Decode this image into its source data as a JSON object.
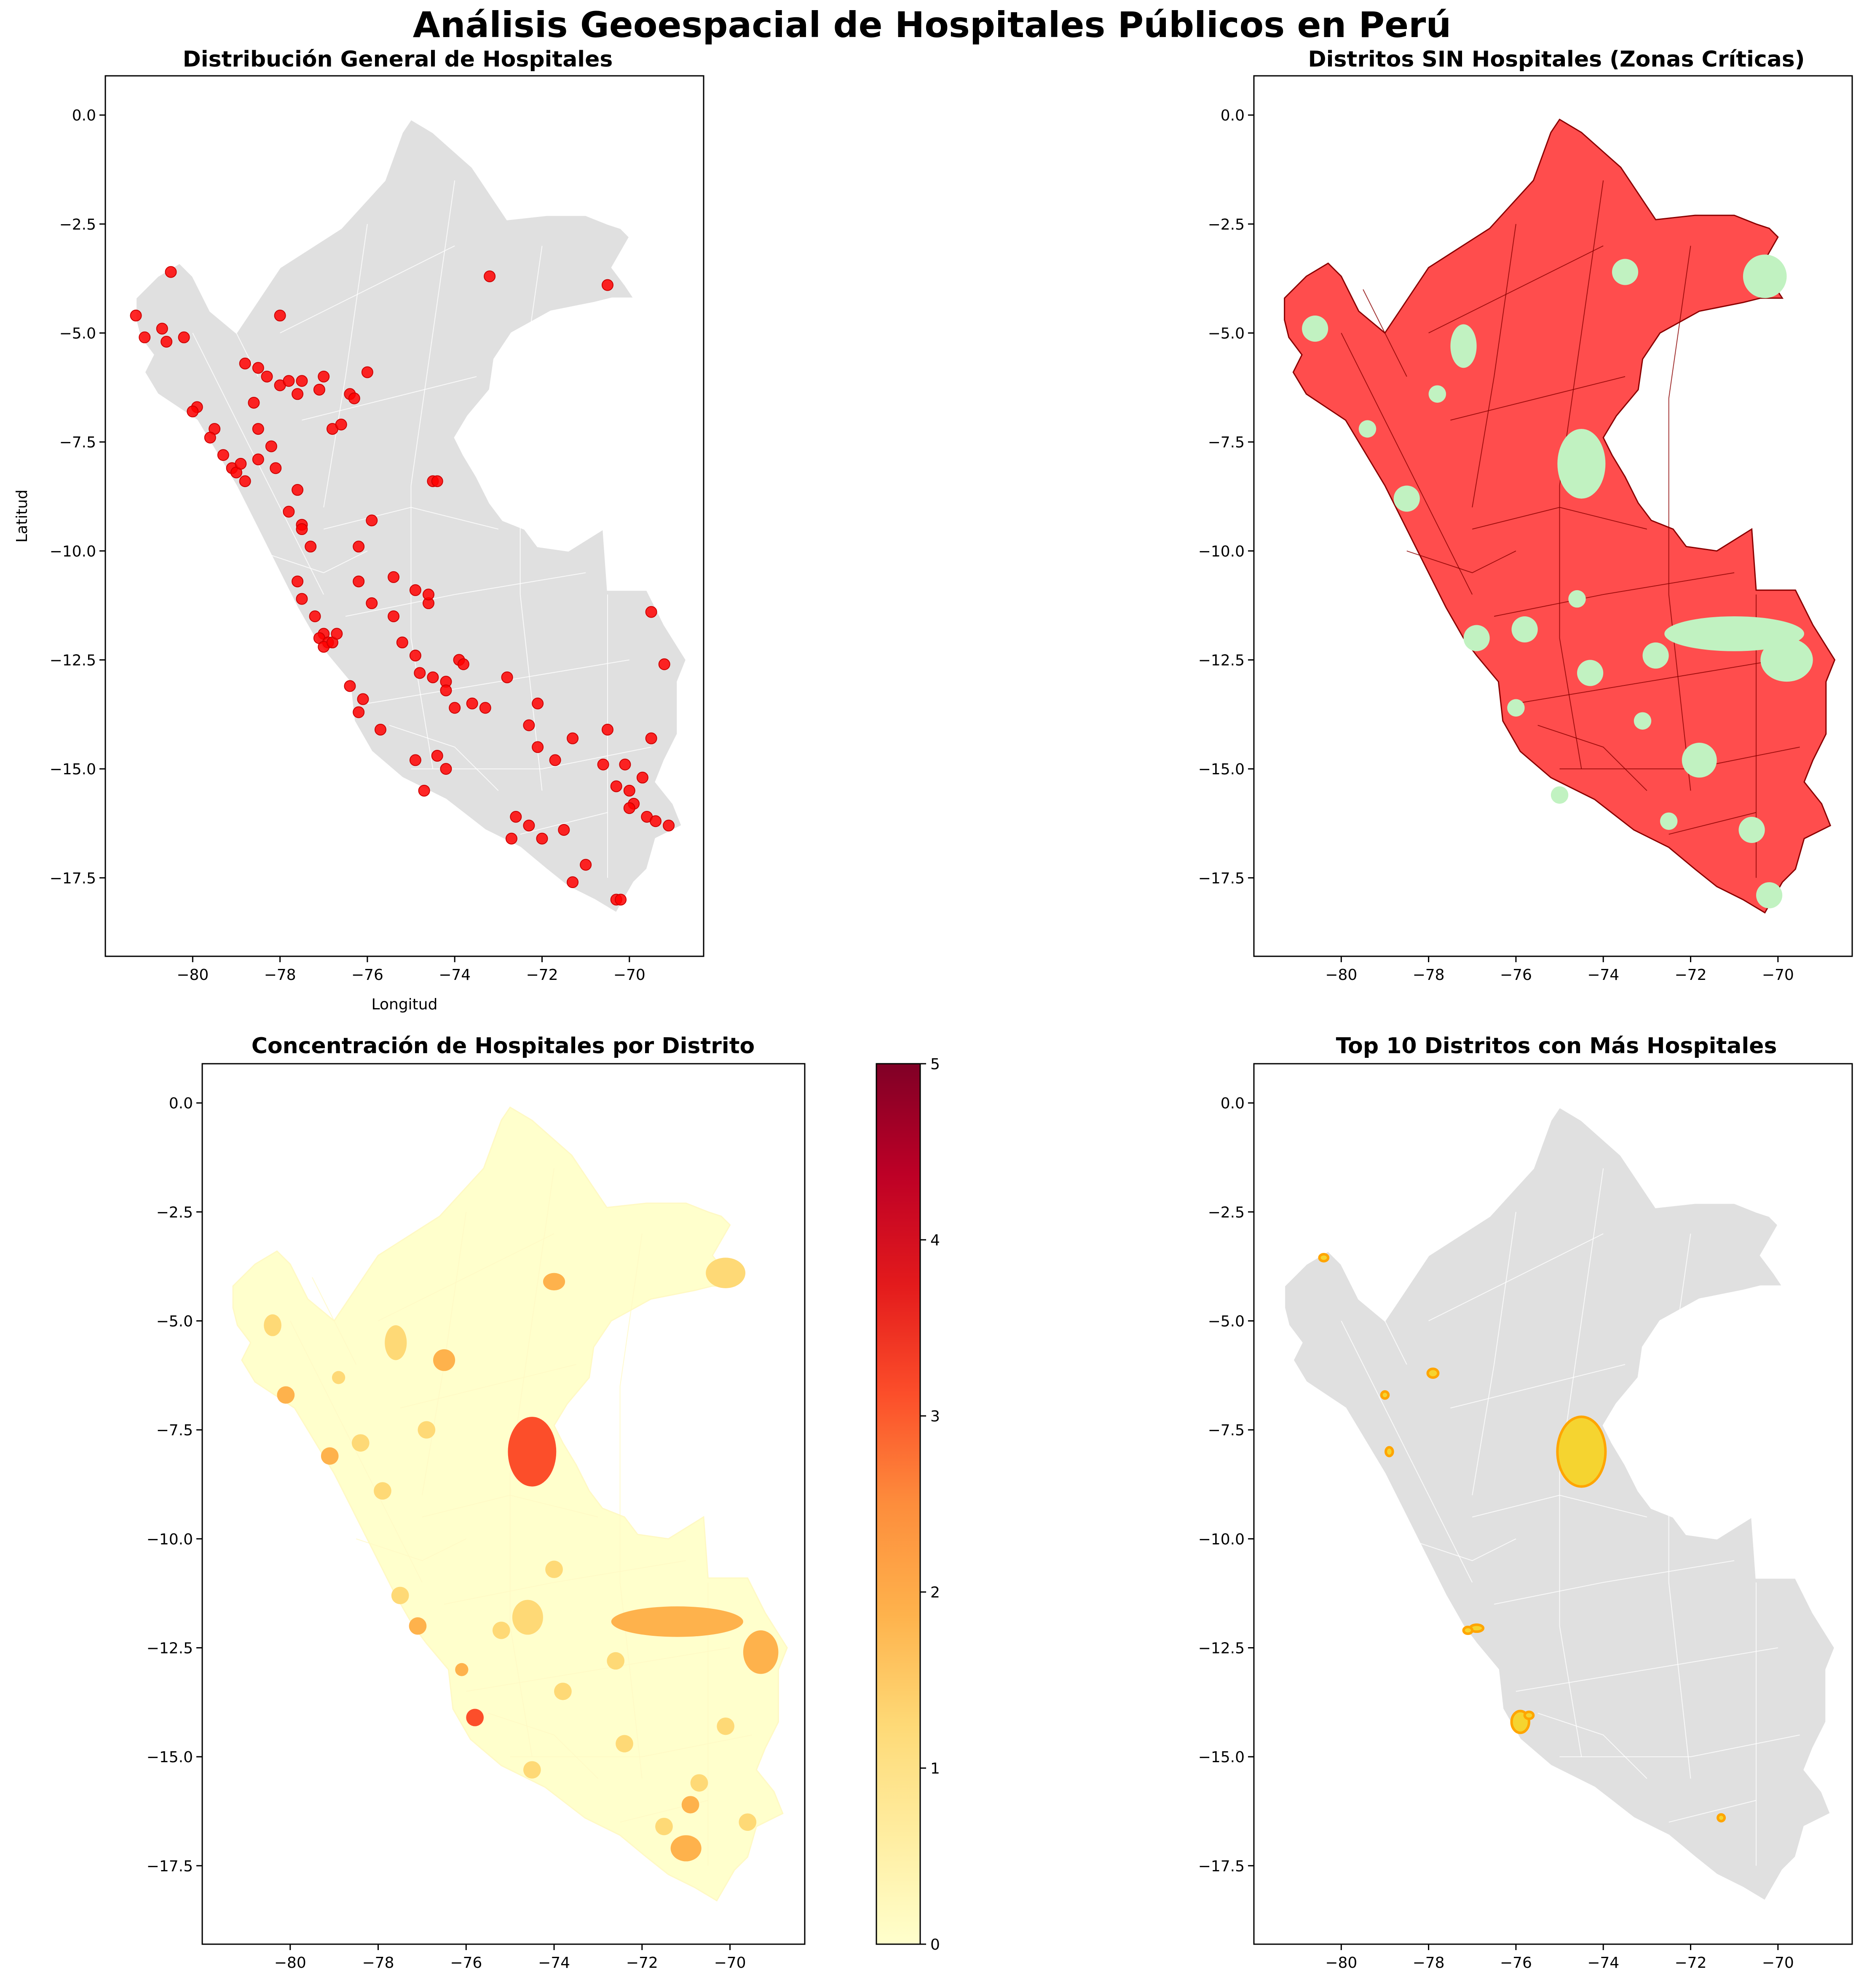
{
  "figure": {
    "suptitle": "Análisis Geoespacial de Hospitales Públicos en Perú"
  },
  "chart_data": [
    {
      "type": "scatter",
      "panel": "top-left",
      "title": "Distribución General de Hospitales",
      "xlabel": "Longitud",
      "ylabel": "Latitud",
      "xlim": [
        -82.0,
        -68.3
      ],
      "ylim": [
        -19.3,
        0.9
      ],
      "xticks": [
        "−80",
        "−78",
        "−76",
        "−74",
        "−72",
        "−70"
      ],
      "yticks": [
        "0.0",
        "−2.5",
        "−5.0",
        "−7.5",
        "−10.0",
        "−12.5",
        "−15.0",
        "−17.5"
      ],
      "base_color": "#e0e0e0",
      "point_color": "#ff0000",
      "points": [
        [
          -80.5,
          -3.6
        ],
        [
          -81.3,
          -4.6
        ],
        [
          -81.1,
          -5.1
        ],
        [
          -80.7,
          -4.9
        ],
        [
          -80.6,
          -5.2
        ],
        [
          -80.2,
          -5.1
        ],
        [
          -79.9,
          -6.7
        ],
        [
          -80.0,
          -6.8
        ],
        [
          -79.5,
          -7.2
        ],
        [
          -79.6,
          -7.4
        ],
        [
          -79.3,
          -7.8
        ],
        [
          -79.1,
          -8.1
        ],
        [
          -79.0,
          -8.2
        ],
        [
          -78.9,
          -8.0
        ],
        [
          -78.8,
          -8.4
        ],
        [
          -78.5,
          -7.9
        ],
        [
          -78.5,
          -7.2
        ],
        [
          -78.6,
          -6.6
        ],
        [
          -78.8,
          -5.7
        ],
        [
          -78.5,
          -5.8
        ],
        [
          -78.3,
          -6.0
        ],
        [
          -78.0,
          -6.2
        ],
        [
          -77.8,
          -6.1
        ],
        [
          -77.5,
          -6.1
        ],
        [
          -77.6,
          -6.4
        ],
        [
          -77.1,
          -6.3
        ],
        [
          -77.0,
          -6.0
        ],
        [
          -76.4,
          -6.4
        ],
        [
          -76.3,
          -6.5
        ],
        [
          -76.0,
          -5.9
        ],
        [
          -76.8,
          -7.2
        ],
        [
          -76.6,
          -7.1
        ],
        [
          -78.2,
          -7.6
        ],
        [
          -78.1,
          -8.1
        ],
        [
          -77.6,
          -8.6
        ],
        [
          -77.8,
          -9.1
        ],
        [
          -77.5,
          -9.4
        ],
        [
          -77.5,
          -9.5
        ],
        [
          -77.3,
          -9.9
        ],
        [
          -77.6,
          -10.7
        ],
        [
          -77.5,
          -11.1
        ],
        [
          -77.2,
          -11.5
        ],
        [
          -77.0,
          -11.9
        ],
        [
          -77.1,
          -12.0
        ],
        [
          -76.9,
          -12.1
        ],
        [
          -77.0,
          -12.2
        ],
        [
          -76.8,
          -12.1
        ],
        [
          -76.7,
          -11.9
        ],
        [
          -76.4,
          -13.1
        ],
        [
          -76.1,
          -13.4
        ],
        [
          -76.2,
          -13.7
        ],
        [
          -75.7,
          -14.1
        ],
        [
          -76.2,
          -9.9
        ],
        [
          -75.9,
          -9.3
        ],
        [
          -76.2,
          -10.7
        ],
        [
          -75.9,
          -11.2
        ],
        [
          -75.4,
          -11.5
        ],
        [
          -75.2,
          -12.1
        ],
        [
          -75.4,
          -10.6
        ],
        [
          -74.9,
          -10.9
        ],
        [
          -74.6,
          -11.2
        ],
        [
          -74.6,
          -11.0
        ],
        [
          -74.9,
          -12.4
        ],
        [
          -74.8,
          -12.8
        ],
        [
          -74.5,
          -12.9
        ],
        [
          -74.2,
          -13.0
        ],
        [
          -74.2,
          -13.2
        ],
        [
          -73.9,
          -12.5
        ],
        [
          -73.8,
          -12.6
        ],
        [
          -74.0,
          -13.6
        ],
        [
          -73.6,
          -13.5
        ],
        [
          -73.3,
          -13.6
        ],
        [
          -74.5,
          -8.4
        ],
        [
          -74.4,
          -8.4
        ],
        [
          -73.2,
          -3.7
        ],
        [
          -70.5,
          -3.9
        ],
        [
          -69.5,
          -11.4
        ],
        [
          -69.2,
          -12.6
        ],
        [
          -72.8,
          -12.9
        ],
        [
          -72.1,
          -13.5
        ],
        [
          -72.3,
          -14.0
        ],
        [
          -72.1,
          -14.5
        ],
        [
          -71.7,
          -14.8
        ],
        [
          -71.3,
          -14.3
        ],
        [
          -70.5,
          -14.1
        ],
        [
          -70.1,
          -14.9
        ],
        [
          -70.6,
          -14.9
        ],
        [
          -70.3,
          -15.4
        ],
        [
          -70.0,
          -15.5
        ],
        [
          -69.9,
          -15.8
        ],
        [
          -69.7,
          -15.2
        ],
        [
          -69.5,
          -14.3
        ],
        [
          -69.6,
          -16.1
        ],
        [
          -69.4,
          -16.2
        ],
        [
          -69.1,
          -16.3
        ],
        [
          -70.0,
          -15.9
        ],
        [
          -71.5,
          -16.4
        ],
        [
          -72.0,
          -16.6
        ],
        [
          -72.3,
          -16.3
        ],
        [
          -72.6,
          -16.1
        ],
        [
          -72.7,
          -16.6
        ],
        [
          -71.3,
          -17.6
        ],
        [
          -71.0,
          -17.2
        ],
        [
          -70.3,
          -18.0
        ],
        [
          -70.2,
          -18.0
        ],
        [
          -74.9,
          -14.8
        ],
        [
          -74.7,
          -15.5
        ],
        [
          -74.4,
          -14.7
        ],
        [
          -74.2,
          -15.0
        ],
        [
          -78.0,
          -4.6
        ]
      ]
    },
    {
      "type": "map",
      "panel": "top-right",
      "title": "Distritos SIN Hospitales (Zonas Críticas)",
      "xlim": [
        -82.0,
        -68.3
      ],
      "ylim": [
        -19.3,
        0.9
      ],
      "xticks": [
        "−80",
        "−78",
        "−76",
        "−74",
        "−72",
        "−70"
      ],
      "yticks": [
        "0.0",
        "−2.5",
        "−5.0",
        "−7.5",
        "−10.0",
        "−12.5",
        "−15.0",
        "−17.5"
      ],
      "no_hospital_color": "#ff4d4d",
      "with_hospital_color": "#c1f2c1",
      "with_hospital_regions": [
        [
          -74.5,
          -8.0,
          0.55,
          0.8
        ],
        [
          -71.0,
          -11.9,
          1.6,
          0.4
        ],
        [
          -69.8,
          -12.5,
          0.6,
          0.5
        ],
        [
          -70.3,
          -3.7,
          0.5,
          0.5
        ],
        [
          -73.5,
          -3.6,
          0.3,
          0.3
        ],
        [
          -77.2,
          -5.3,
          0.3,
          0.5
        ],
        [
          -75.8,
          -11.8,
          0.3,
          0.3
        ],
        [
          -76.9,
          -12.0,
          0.3,
          0.3
        ],
        [
          -72.8,
          -12.4,
          0.3,
          0.3
        ],
        [
          -71.8,
          -14.8,
          0.4,
          0.4
        ],
        [
          -70.6,
          -16.4,
          0.3,
          0.3
        ],
        [
          -70.2,
          -17.9,
          0.3,
          0.3
        ],
        [
          -78.5,
          -8.8,
          0.3,
          0.3
        ],
        [
          -80.6,
          -4.9,
          0.3,
          0.3
        ],
        [
          -79.4,
          -7.2,
          0.2,
          0.2
        ],
        [
          -74.3,
          -12.8,
          0.3,
          0.3
        ],
        [
          -73.1,
          -13.9,
          0.2,
          0.2
        ],
        [
          -75.0,
          -15.6,
          0.2,
          0.2
        ],
        [
          -72.5,
          -16.2,
          0.2,
          0.2
        ],
        [
          -76.0,
          -13.6,
          0.2,
          0.2
        ],
        [
          -74.6,
          -11.1,
          0.2,
          0.2
        ],
        [
          -77.8,
          -6.4,
          0.2,
          0.2
        ]
      ]
    },
    {
      "type": "heatmap",
      "panel": "bottom-left",
      "title": "Concentración de Hospitales por Distrito",
      "xlim": [
        -82.0,
        -68.3
      ],
      "ylim": [
        -19.3,
        0.9
      ],
      "xticks": [
        "−80",
        "−78",
        "−76",
        "−74",
        "−72",
        "−70"
      ],
      "yticks": [
        "0.0",
        "−2.5",
        "−5.0",
        "−7.5",
        "−10.0",
        "−12.5",
        "−15.0",
        "−17.5"
      ],
      "colorbar": {
        "min": 0,
        "max": 5,
        "ticks": [
          "0",
          "1",
          "2",
          "3",
          "4",
          "5"
        ],
        "colormap": "YlOrRd"
      },
      "districts": [
        [
          -74.5,
          -8.0,
          0.55,
          0.8,
          3
        ],
        [
          -71.2,
          -11.9,
          1.5,
          0.35,
          2
        ],
        [
          -69.3,
          -12.6,
          0.4,
          0.5,
          2
        ],
        [
          -75.8,
          -14.1,
          0.2,
          0.2,
          3
        ],
        [
          -76.5,
          -5.9,
          0.25,
          0.25,
          2
        ],
        [
          -74.0,
          -4.1,
          0.25,
          0.2,
          2
        ],
        [
          -70.1,
          -3.9,
          0.45,
          0.35,
          1
        ],
        [
          -71.0,
          -17.1,
          0.35,
          0.3,
          2
        ],
        [
          -77.6,
          -5.5,
          0.25,
          0.4,
          1
        ],
        [
          -74.6,
          -11.8,
          0.35,
          0.4,
          1
        ],
        [
          -77.1,
          -12.0,
          0.2,
          0.2,
          2
        ],
        [
          -80.1,
          -6.7,
          0.2,
          0.2,
          2
        ],
        [
          -79.1,
          -8.1,
          0.2,
          0.2,
          2
        ],
        [
          -80.4,
          -5.1,
          0.2,
          0.25,
          1
        ],
        [
          -78.4,
          -7.8,
          0.2,
          0.2,
          1
        ],
        [
          -76.9,
          -7.5,
          0.2,
          0.2,
          1
        ],
        [
          -77.9,
          -8.9,
          0.2,
          0.2,
          1
        ],
        [
          -77.5,
          -11.3,
          0.2,
          0.2,
          1
        ],
        [
          -75.2,
          -12.1,
          0.2,
          0.2,
          1
        ],
        [
          -73.8,
          -13.5,
          0.2,
          0.2,
          1
        ],
        [
          -72.4,
          -14.7,
          0.2,
          0.2,
          1
        ],
        [
          -70.1,
          -14.3,
          0.2,
          0.2,
          1
        ],
        [
          -70.7,
          -15.6,
          0.2,
          0.2,
          1
        ],
        [
          -69.6,
          -16.5,
          0.2,
          0.2,
          1
        ],
        [
          -71.5,
          -16.6,
          0.2,
          0.2,
          1
        ],
        [
          -74.5,
          -15.3,
          0.2,
          0.2,
          1
        ],
        [
          -76.1,
          -13.0,
          0.15,
          0.15,
          2
        ],
        [
          -72.6,
          -12.8,
          0.2,
          0.2,
          1
        ],
        [
          -74.0,
          -10.7,
          0.2,
          0.2,
          1
        ],
        [
          -78.9,
          -6.3,
          0.15,
          0.15,
          1
        ],
        [
          -70.9,
          -16.1,
          0.2,
          0.2,
          2
        ]
      ]
    },
    {
      "type": "map",
      "panel": "bottom-right",
      "title": "Top 10 Distritos con Más Hospitales",
      "xlim": [
        -82.0,
        -68.3
      ],
      "ylim": [
        -19.3,
        0.9
      ],
      "xticks": [
        "−80",
        "−78",
        "−76",
        "−74",
        "−72",
        "−70"
      ],
      "yticks": [
        "0.0",
        "−2.5",
        "−5.0",
        "−7.5",
        "−10.0",
        "−12.5",
        "−15.0",
        "−17.5"
      ],
      "base_color": "#e0e0e0",
      "highlight_fill": "#f5d430",
      "highlight_edge": "#ffa500",
      "top_districts": [
        [
          -74.5,
          -8.0,
          0.55,
          0.8
        ],
        [
          -75.9,
          -14.2,
          0.2,
          0.25
        ],
        [
          -76.9,
          -12.05,
          0.15,
          0.08
        ],
        [
          -77.9,
          -6.2,
          0.12,
          0.1
        ],
        [
          -80.4,
          -3.55,
          0.1,
          0.08
        ],
        [
          -79.0,
          -6.7,
          0.08,
          0.08
        ],
        [
          -78.9,
          -8.0,
          0.08,
          0.1
        ],
        [
          -71.3,
          -16.4,
          0.06,
          0.06
        ],
        [
          -77.1,
          -12.1,
          0.1,
          0.06
        ],
        [
          -75.7,
          -14.05,
          0.1,
          0.08
        ]
      ]
    }
  ]
}
